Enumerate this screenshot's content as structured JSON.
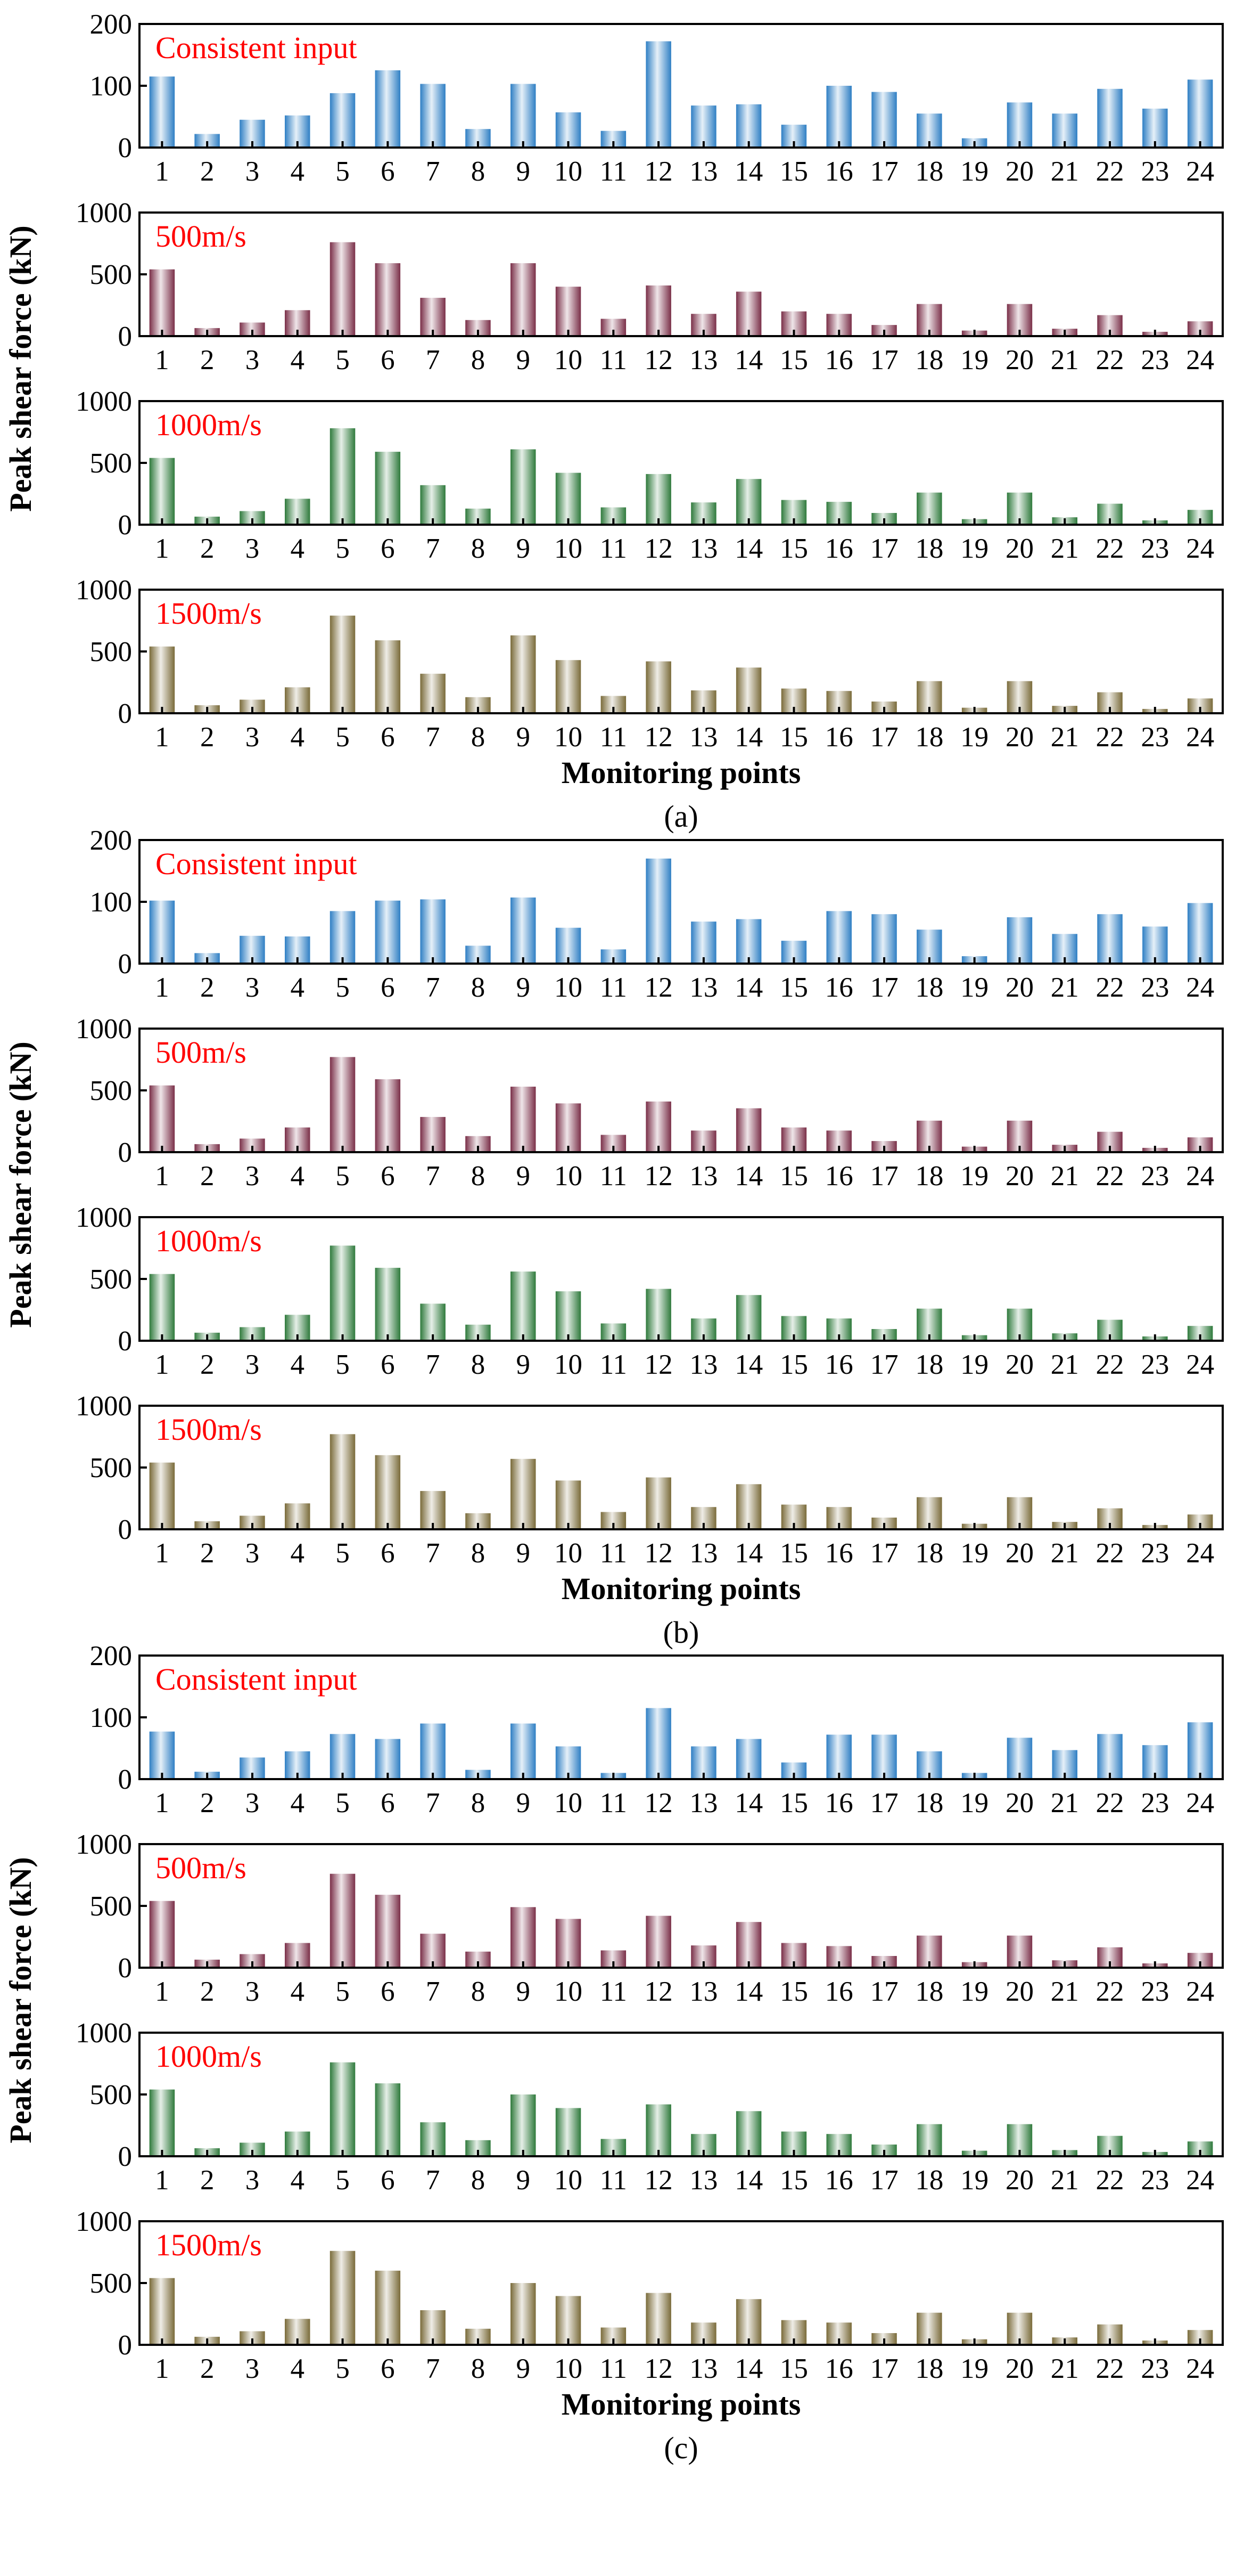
{
  "chart_data": [
    {
      "type": "bar",
      "caption": "(a)",
      "xlabel": "Monitoring points",
      "ylabel": "Peak shear force (kN)",
      "categories": [
        "1",
        "2",
        "3",
        "4",
        "5",
        "6",
        "7",
        "8",
        "9",
        "10",
        "11",
        "12",
        "13",
        "14",
        "15",
        "16",
        "17",
        "18",
        "19",
        "20",
        "21",
        "22",
        "23",
        "24"
      ],
      "panels": [
        {
          "annotation": "Consistent input",
          "ylim": [
            0,
            200
          ],
          "yticks": [
            "0",
            "100",
            "200"
          ],
          "color": "#2f7fc4",
          "values": [
            115,
            22,
            45,
            52,
            88,
            125,
            103,
            30,
            103,
            57,
            27,
            172,
            68,
            70,
            37,
            100,
            90,
            55,
            15,
            73,
            55,
            95,
            63,
            110
          ]
        },
        {
          "annotation": "500m/s",
          "ylim": [
            0,
            1000
          ],
          "yticks": [
            "0",
            "500",
            "1000"
          ],
          "color": "#7a2f48",
          "values": [
            540,
            65,
            110,
            210,
            760,
            590,
            310,
            130,
            590,
            400,
            140,
            410,
            180,
            360,
            200,
            180,
            90,
            260,
            45,
            260,
            60,
            170,
            35,
            120
          ]
        },
        {
          "annotation": "1000m/s",
          "ylim": [
            0,
            1000
          ],
          "yticks": [
            "0",
            "500",
            "1000"
          ],
          "color": "#2f7a3c",
          "values": [
            540,
            65,
            110,
            210,
            780,
            590,
            320,
            130,
            610,
            420,
            140,
            410,
            180,
            370,
            200,
            185,
            95,
            260,
            45,
            260,
            60,
            170,
            35,
            120
          ]
        },
        {
          "annotation": "1500m/s",
          "ylim": [
            0,
            1000
          ],
          "yticks": [
            "0",
            "500",
            "1000"
          ],
          "color": "#7a6b3a",
          "values": [
            540,
            65,
            110,
            210,
            790,
            590,
            320,
            130,
            630,
            430,
            140,
            420,
            185,
            370,
            200,
            180,
            95,
            260,
            45,
            260,
            60,
            170,
            35,
            120
          ]
        }
      ]
    },
    {
      "type": "bar",
      "caption": "(b)",
      "xlabel": "Monitoring points",
      "ylabel": "Peak shear force (kN)",
      "categories": [
        "1",
        "2",
        "3",
        "4",
        "5",
        "6",
        "7",
        "8",
        "9",
        "10",
        "11",
        "12",
        "13",
        "14",
        "15",
        "16",
        "17",
        "18",
        "19",
        "20",
        "21",
        "22",
        "23",
        "24"
      ],
      "panels": [
        {
          "annotation": "Consistent input",
          "ylim": [
            0,
            200
          ],
          "yticks": [
            "0",
            "100",
            "200"
          ],
          "color": "#2f7fc4",
          "values": [
            102,
            17,
            45,
            44,
            85,
            102,
            104,
            29,
            107,
            58,
            23,
            170,
            68,
            72,
            37,
            85,
            80,
            55,
            12,
            75,
            48,
            80,
            60,
            98
          ]
        },
        {
          "annotation": "500m/s",
          "ylim": [
            0,
            1000
          ],
          "yticks": [
            "0",
            "500",
            "1000"
          ],
          "color": "#7a2f48",
          "values": [
            540,
            65,
            110,
            200,
            770,
            590,
            285,
            130,
            530,
            395,
            140,
            410,
            175,
            355,
            200,
            175,
            90,
            255,
            45,
            255,
            60,
            165,
            35,
            120
          ]
        },
        {
          "annotation": "1000m/s",
          "ylim": [
            0,
            1000
          ],
          "yticks": [
            "0",
            "500",
            "1000"
          ],
          "color": "#2f7a3c",
          "values": [
            540,
            65,
            110,
            210,
            770,
            590,
            300,
            130,
            560,
            400,
            140,
            420,
            180,
            370,
            200,
            180,
            95,
            260,
            45,
            260,
            60,
            170,
            35,
            120
          ]
        },
        {
          "annotation": "1500m/s",
          "ylim": [
            0,
            1000
          ],
          "yticks": [
            "0",
            "500",
            "1000"
          ],
          "color": "#7a6b3a",
          "values": [
            540,
            65,
            110,
            210,
            770,
            600,
            310,
            130,
            570,
            395,
            140,
            420,
            180,
            365,
            200,
            180,
            95,
            260,
            45,
            260,
            60,
            170,
            35,
            120
          ]
        }
      ]
    },
    {
      "type": "bar",
      "caption": "(c)",
      "xlabel": "Monitoring points",
      "ylabel": "Peak shear force (kN)",
      "categories": [
        "1",
        "2",
        "3",
        "4",
        "5",
        "6",
        "7",
        "8",
        "9",
        "10",
        "11",
        "12",
        "13",
        "14",
        "15",
        "16",
        "17",
        "18",
        "19",
        "20",
        "21",
        "22",
        "23",
        "24"
      ],
      "panels": [
        {
          "annotation": "Consistent input",
          "ylim": [
            0,
            200
          ],
          "yticks": [
            "0",
            "100",
            "200"
          ],
          "color": "#2f7fc4",
          "values": [
            77,
            12,
            35,
            45,
            73,
            65,
            90,
            15,
            90,
            53,
            10,
            115,
            53,
            65,
            27,
            72,
            72,
            45,
            10,
            67,
            47,
            73,
            55,
            92
          ]
        },
        {
          "annotation": "500m/s",
          "ylim": [
            0,
            1000
          ],
          "yticks": [
            "0",
            "500",
            "1000"
          ],
          "color": "#7a2f48",
          "values": [
            540,
            65,
            110,
            200,
            760,
            590,
            275,
            130,
            490,
            395,
            140,
            420,
            180,
            370,
            200,
            175,
            95,
            260,
            45,
            260,
            60,
            165,
            35,
            120
          ]
        },
        {
          "annotation": "1000m/s",
          "ylim": [
            0,
            1000
          ],
          "yticks": [
            "0",
            "500",
            "1000"
          ],
          "color": "#2f7a3c",
          "values": [
            540,
            65,
            110,
            200,
            760,
            590,
            275,
            130,
            500,
            390,
            140,
            420,
            180,
            365,
            200,
            180,
            95,
            260,
            45,
            260,
            50,
            165,
            35,
            120
          ]
        },
        {
          "annotation": "1500m/s",
          "ylim": [
            0,
            1000
          ],
          "yticks": [
            "0",
            "500",
            "1000"
          ],
          "color": "#7a6b3a",
          "values": [
            540,
            65,
            110,
            210,
            760,
            600,
            280,
            130,
            500,
            395,
            140,
            420,
            180,
            370,
            200,
            180,
            95,
            260,
            45,
            260,
            60,
            165,
            35,
            120
          ]
        }
      ]
    }
  ]
}
